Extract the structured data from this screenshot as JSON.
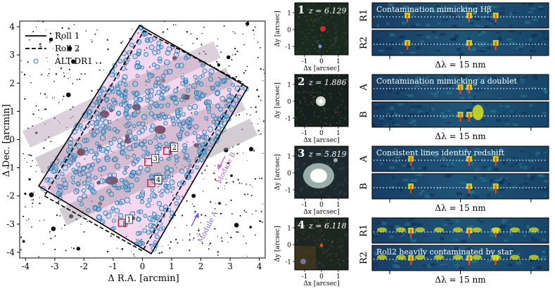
{
  "map": {
    "ylabel": "Δ Dec. [arcmin]",
    "xlabel": "Δ R.A. [arcmin]",
    "xticks": [
      "-4",
      "-3",
      "-2",
      "-1",
      "0",
      "1",
      "2",
      "3",
      "4"
    ],
    "yticks": [
      "4",
      "3",
      "2",
      "1",
      "0",
      "-1",
      "-2",
      "-3",
      "-4"
    ],
    "legend": [
      {
        "label": "Roll 1",
        "style": "solid"
      },
      {
        "label": "Roll 2",
        "style": "dashed"
      },
      {
        "label": "ALT DR1",
        "style": "circle"
      }
    ],
    "module_a": "Module A",
    "module_b": "Module B",
    "markers": [
      "1",
      "2",
      "3",
      "4"
    ],
    "colors": {
      "module_a": "#7d5fd0",
      "module_b": "#c865c8",
      "circles": "#2a7fb5",
      "markers": "#d22020"
    }
  },
  "chart_data": {
    "type": "scatter",
    "title": "",
    "xlabel": "Δ R.A. [arcmin]",
    "ylabel": "Δ Dec. [arcmin]",
    "xlim": [
      -4.2,
      4.2
    ],
    "ylim": [
      -4.2,
      4.2
    ],
    "series": [
      {
        "name": "Roll 1",
        "shape": "polygon",
        "x": [
          -3.55,
          0.3,
          3.6,
          -0.1,
          -3.55
        ],
        "y": [
          -1.65,
          -4.05,
          1.85,
          4.05,
          -1.65
        ]
      },
      {
        "name": "Roll 2",
        "shape": "polygon",
        "x": [
          -3.35,
          0.0,
          3.45,
          0.05,
          -3.35
        ],
        "y": [
          -2.0,
          -3.95,
          2.0,
          3.85,
          -2.0
        ]
      }
    ],
    "markers": [
      {
        "label": "1",
        "x": -0.7,
        "y": -2.95
      },
      {
        "label": "2",
        "x": 0.85,
        "y": -0.4
      },
      {
        "label": "3",
        "x": 0.2,
        "y": -0.8
      },
      {
        "label": "4",
        "x": 0.3,
        "y": -1.55
      }
    ]
  },
  "cutouts": {
    "ylabel": "Δy [arcsec]",
    "xlabel": "Δx [arcsec]",
    "xticks": [
      "-1",
      "0",
      "1"
    ],
    "yticks": [
      "1",
      "0",
      "-1"
    ],
    "panels": [
      {
        "number": "1",
        "z": "z = 6.129"
      },
      {
        "number": "2",
        "z": "z = 1.886"
      },
      {
        "number": "3",
        "z": "z = 5.819"
      },
      {
        "number": "4",
        "z": "z = 6.118"
      }
    ]
  },
  "spectra": {
    "dlambda": "Δλ = 15 nm",
    "groups": [
      {
        "rows": [
          "R1",
          "R2"
        ],
        "caption": "Contamination mimicking Hβ",
        "caption2": ""
      },
      {
        "rows": [
          "A",
          "B"
        ],
        "caption": "Contamination mimicking a doublet",
        "caption2": ""
      },
      {
        "rows": [
          "A",
          "B"
        ],
        "caption": "Consistent lines identify redshift",
        "caption2": ""
      },
      {
        "rows": [
          "R1",
          "R2"
        ],
        "caption": "",
        "caption2": "Roll2 heavily contaminated by star"
      }
    ]
  }
}
